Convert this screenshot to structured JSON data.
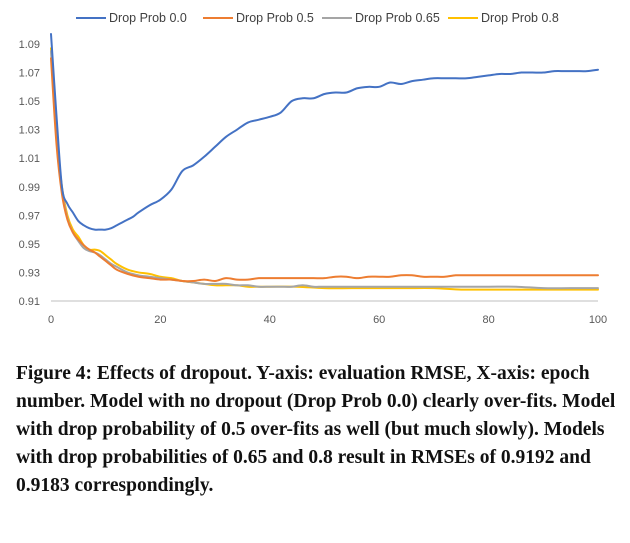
{
  "chart_data": {
    "type": "line",
    "title": "",
    "xlabel": "",
    "ylabel": "",
    "xlim": [
      0,
      100
    ],
    "ylim": [
      0.91,
      1.09
    ],
    "x_ticks": [
      0,
      20,
      40,
      60,
      80,
      100
    ],
    "y_ticks": [
      0.91,
      0.93,
      0.95,
      0.97,
      0.99,
      1.01,
      1.03,
      1.05,
      1.07,
      1.09
    ],
    "legend_position": "top",
    "grid": false,
    "series": [
      {
        "name": "Drop Prob 0.0",
        "color": "#4472c4",
        "x": [
          0,
          1,
          2,
          3,
          4,
          5,
          6,
          7,
          8,
          9,
          10,
          11,
          12,
          13,
          14,
          15,
          16,
          18,
          20,
          22,
          24,
          26,
          28,
          30,
          32,
          34,
          36,
          38,
          40,
          42,
          44,
          46,
          48,
          50,
          52,
          54,
          56,
          58,
          60,
          62,
          64,
          66,
          68,
          70,
          72,
          74,
          76,
          78,
          80,
          82,
          84,
          86,
          88,
          90,
          92,
          94,
          96,
          98,
          100
        ],
        "y": [
          1.097,
          1.04,
          0.99,
          0.978,
          0.972,
          0.966,
          0.963,
          0.961,
          0.96,
          0.96,
          0.96,
          0.961,
          0.963,
          0.965,
          0.967,
          0.969,
          0.972,
          0.977,
          0.981,
          0.988,
          1.001,
          1.005,
          1.011,
          1.018,
          1.025,
          1.03,
          1.035,
          1.037,
          1.039,
          1.042,
          1.05,
          1.052,
          1.052,
          1.055,
          1.056,
          1.056,
          1.059,
          1.06,
          1.06,
          1.063,
          1.062,
          1.064,
          1.065,
          1.066,
          1.066,
          1.066,
          1.066,
          1.067,
          1.068,
          1.069,
          1.069,
          1.07,
          1.07,
          1.07,
          1.071,
          1.071,
          1.071,
          1.071,
          1.072
        ]
      },
      {
        "name": "Drop Prob 0.5",
        "color": "#ed7d31",
        "x": [
          0,
          1,
          2,
          3,
          4,
          5,
          6,
          7,
          8,
          9,
          10,
          11,
          12,
          14,
          16,
          18,
          20,
          22,
          24,
          26,
          28,
          30,
          32,
          34,
          36,
          38,
          40,
          42,
          44,
          46,
          48,
          50,
          52,
          54,
          56,
          58,
          60,
          62,
          64,
          66,
          68,
          70,
          72,
          74,
          76,
          78,
          80,
          82,
          84,
          86,
          88,
          90,
          92,
          94,
          96,
          98,
          100
        ],
        "y": [
          1.08,
          1.02,
          0.985,
          0.967,
          0.958,
          0.953,
          0.949,
          0.946,
          0.944,
          0.941,
          0.938,
          0.935,
          0.932,
          0.929,
          0.927,
          0.926,
          0.925,
          0.925,
          0.924,
          0.924,
          0.925,
          0.924,
          0.926,
          0.925,
          0.925,
          0.926,
          0.926,
          0.926,
          0.926,
          0.926,
          0.926,
          0.926,
          0.927,
          0.927,
          0.926,
          0.927,
          0.927,
          0.927,
          0.928,
          0.928,
          0.927,
          0.927,
          0.927,
          0.928,
          0.928,
          0.928,
          0.928,
          0.928,
          0.928,
          0.928,
          0.928,
          0.928,
          0.928,
          0.928,
          0.928,
          0.928,
          0.928
        ]
      },
      {
        "name": "Drop Prob 0.65",
        "color": "#a5a5a5",
        "x": [
          0,
          1,
          2,
          3,
          4,
          5,
          6,
          7,
          8,
          9,
          10,
          11,
          12,
          14,
          16,
          18,
          20,
          22,
          24,
          26,
          28,
          30,
          32,
          34,
          36,
          38,
          40,
          42,
          44,
          46,
          48,
          50,
          55,
          60,
          65,
          70,
          75,
          80,
          85,
          90,
          95,
          100
        ],
        "y": [
          1.085,
          1.025,
          0.988,
          0.968,
          0.958,
          0.952,
          0.947,
          0.945,
          0.944,
          0.942,
          0.939,
          0.936,
          0.934,
          0.93,
          0.928,
          0.927,
          0.926,
          0.925,
          0.924,
          0.923,
          0.922,
          0.922,
          0.922,
          0.921,
          0.921,
          0.92,
          0.92,
          0.92,
          0.92,
          0.921,
          0.92,
          0.92,
          0.92,
          0.92,
          0.92,
          0.92,
          0.92,
          0.92,
          0.92,
          0.919,
          0.919,
          0.919
        ]
      },
      {
        "name": "Drop Prob 0.8",
        "color": "#ffc000",
        "x": [
          0,
          1,
          2,
          3,
          4,
          5,
          6,
          7,
          8,
          9,
          10,
          11,
          12,
          14,
          16,
          18,
          20,
          22,
          24,
          26,
          28,
          30,
          32,
          34,
          36,
          38,
          40,
          45,
          50,
          55,
          60,
          65,
          70,
          75,
          80,
          85,
          90,
          95,
          100
        ],
        "y": [
          1.087,
          1.027,
          0.99,
          0.97,
          0.96,
          0.955,
          0.949,
          0.946,
          0.946,
          0.945,
          0.942,
          0.939,
          0.936,
          0.932,
          0.93,
          0.929,
          0.927,
          0.926,
          0.924,
          0.923,
          0.922,
          0.921,
          0.921,
          0.921,
          0.92,
          0.92,
          0.92,
          0.92,
          0.919,
          0.919,
          0.919,
          0.919,
          0.919,
          0.918,
          0.918,
          0.918,
          0.918,
          0.918,
          0.918
        ]
      }
    ]
  },
  "caption": "Figure 4: Effects of dropout. Y-axis: evaluation RMSE, X-axis: epoch number. Model with no dropout (Drop Prob 0.0) clearly over-fits. Model with drop probability of 0.5 over-fits as well (but much slowly). Models with drop probabilities of 0.65 and 0.8 result in RMSEs of 0.9192 and 0.9183 correspondingly."
}
